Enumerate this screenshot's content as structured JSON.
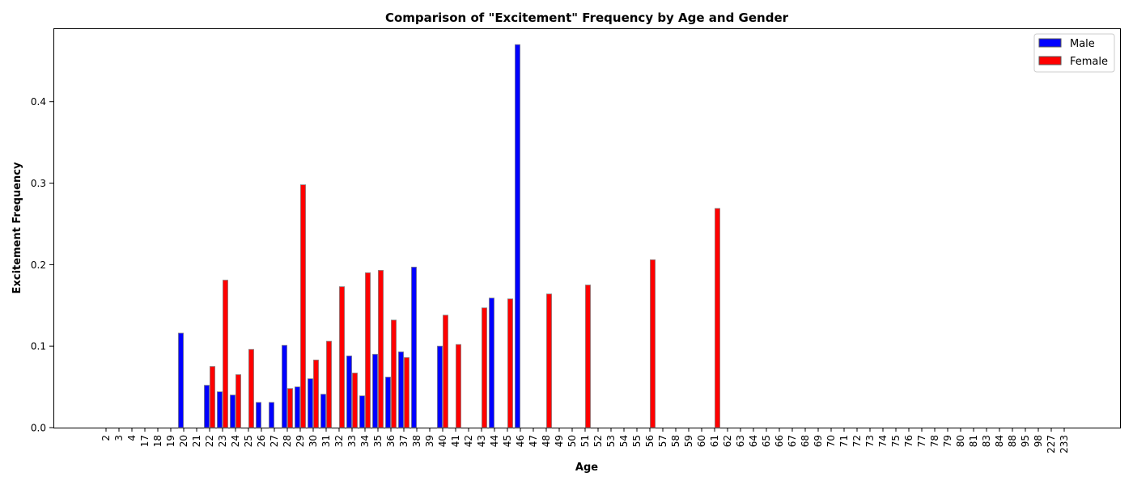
{
  "chart_data": {
    "type": "bar",
    "title": "Comparison of \"Excitement\" Frequency by Age and Gender",
    "xlabel": "Age",
    "ylabel": "Excitement Frequency",
    "ylim": [
      0,
      0.49
    ],
    "yticks": [
      "0.0",
      "0.1",
      "0.2",
      "0.3",
      "0.4"
    ],
    "grid": false,
    "legend_position": "top-right",
    "categories": [
      "2",
      "3",
      "4",
      "17",
      "18",
      "19",
      "20",
      "21",
      "22",
      "23",
      "24",
      "25",
      "26",
      "27",
      "28",
      "29",
      "30",
      "31",
      "32",
      "33",
      "34",
      "35",
      "36",
      "37",
      "38",
      "39",
      "40",
      "41",
      "42",
      "43",
      "44",
      "45",
      "46",
      "47",
      "48",
      "49",
      "50",
      "51",
      "52",
      "53",
      "54",
      "55",
      "56",
      "57",
      "58",
      "59",
      "60",
      "61",
      "62",
      "63",
      "64",
      "65",
      "66",
      "67",
      "68",
      "69",
      "70",
      "71",
      "72",
      "73",
      "74",
      "75",
      "76",
      "77",
      "78",
      "79",
      "80",
      "81",
      "83",
      "84",
      "88",
      "95",
      "98",
      "227",
      "233"
    ],
    "series": [
      {
        "name": "Male",
        "color": "#0000ff",
        "values": [
          0,
          0,
          0,
          0,
          0,
          0,
          0.116,
          0,
          0.052,
          0.044,
          0.04,
          0,
          0.031,
          0.031,
          0.101,
          0.05,
          0.06,
          0.041,
          0,
          0.088,
          0.039,
          0.09,
          0.062,
          0.093,
          0.197,
          0,
          0.1,
          0,
          0,
          0,
          0.159,
          0,
          0.47,
          0,
          0,
          0,
          0,
          0,
          0,
          0,
          0,
          0,
          0,
          0,
          0,
          0,
          0,
          0,
          0,
          0,
          0,
          0,
          0,
          0,
          0,
          0,
          0,
          0,
          0,
          0,
          0,
          0,
          0,
          0,
          0,
          0,
          0,
          0,
          0,
          0,
          0,
          0,
          0,
          0,
          0
        ]
      },
      {
        "name": "Female",
        "color": "#ff0000",
        "values": [
          0,
          0,
          0,
          0,
          0,
          0,
          0,
          0,
          0.075,
          0.181,
          0.065,
          0.096,
          0,
          0,
          0.048,
          0.298,
          0.083,
          0.106,
          0.173,
          0.067,
          0.19,
          0.193,
          0.132,
          0.086,
          0,
          0,
          0.138,
          0.102,
          0,
          0.147,
          0,
          0.158,
          0,
          0,
          0.164,
          0,
          0,
          0.175,
          0,
          0,
          0,
          0,
          0.206,
          0,
          0,
          0,
          0,
          0.269,
          0,
          0,
          0,
          0,
          0,
          0,
          0,
          0,
          0,
          0,
          0,
          0,
          0,
          0,
          0,
          0,
          0,
          0,
          0,
          0,
          0,
          0,
          0,
          0,
          0,
          0,
          0
        ]
      }
    ]
  }
}
